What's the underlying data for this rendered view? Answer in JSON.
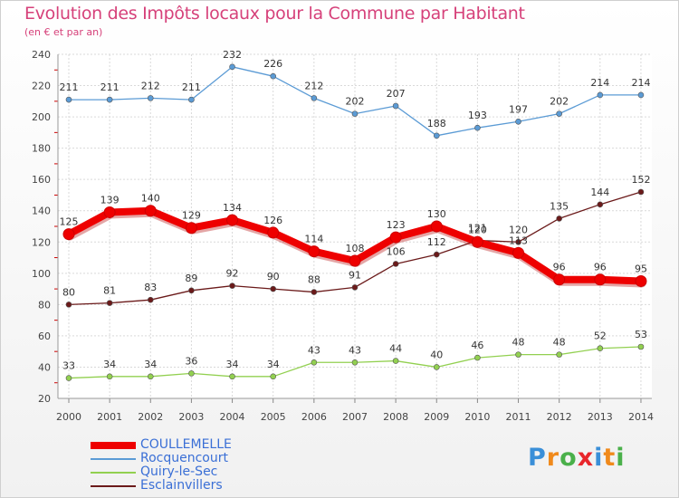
{
  "chart_data": {
    "type": "line",
    "title": "Evolution des Impôts locaux pour la Commune par Habitant",
    "subtitle": "(en € et par an)",
    "x": [
      "2000",
      "2001",
      "2002",
      "2003",
      "2004",
      "2005",
      "2006",
      "2007",
      "2008",
      "2009",
      "2010",
      "2011",
      "2012",
      "2013",
      "2014"
    ],
    "ylim": [
      20,
      240
    ],
    "yticks": [
      20,
      40,
      60,
      80,
      100,
      120,
      140,
      160,
      180,
      200,
      220,
      240
    ],
    "grid": true,
    "legend_position": "bottom-left",
    "series": [
      {
        "name": "COULLEMELLE",
        "color": "#ee0000",
        "values": [
          125,
          139,
          140,
          129,
          134,
          126,
          114,
          108,
          123,
          130,
          120,
          113,
          96,
          96,
          95
        ]
      },
      {
        "name": "Rocquencourt",
        "color": "#5b9bd5",
        "values": [
          211,
          211,
          212,
          211,
          232,
          226,
          212,
          202,
          207,
          188,
          193,
          197,
          202,
          214,
          214
        ]
      },
      {
        "name": "Quiry-le-Sec",
        "color": "#92d050",
        "values": [
          33,
          34,
          34,
          36,
          34,
          34,
          43,
          43,
          44,
          40,
          46,
          48,
          48,
          52,
          53
        ]
      },
      {
        "name": "Esclainvillers",
        "color": "#6b1a1a",
        "values": [
          80,
          81,
          83,
          89,
          92,
          90,
          88,
          91,
          106,
          112,
          121,
          120,
          135,
          144,
          152
        ]
      }
    ],
    "data_labels": {
      "COULLEMELLE": [
        "125",
        "139",
        "140",
        "129",
        "134",
        "126",
        "114",
        "108",
        "123",
        "130",
        "120",
        "113",
        "96",
        "96",
        "95"
      ],
      "Rocquencourt": [
        "211",
        "211",
        "212",
        "211",
        "232",
        "226",
        "212",
        "202",
        "207",
        "188",
        "193",
        "197",
        "202",
        "214",
        "214"
      ],
      "Quiry-le-Sec": [
        "33",
        "34",
        "34",
        "36",
        "34",
        "34",
        "43",
        "43",
        "44",
        "40",
        "46",
        "48",
        "48",
        "52",
        "53"
      ],
      "Esclainvillers": [
        "80",
        "81",
        "83",
        "89",
        "92",
        "90",
        "88",
        "91",
        "106",
        "112",
        "121",
        "120",
        "135",
        "144",
        "152"
      ]
    }
  },
  "logo": {
    "letters": [
      "P",
      "r",
      "o",
      "x",
      "i",
      "t",
      "i"
    ],
    "colors": [
      "#3a8fd8",
      "#f08a1c",
      "#4ab04a",
      "#e8262b",
      "#3a8fd8",
      "#f08a1c",
      "#4ab04a"
    ]
  }
}
